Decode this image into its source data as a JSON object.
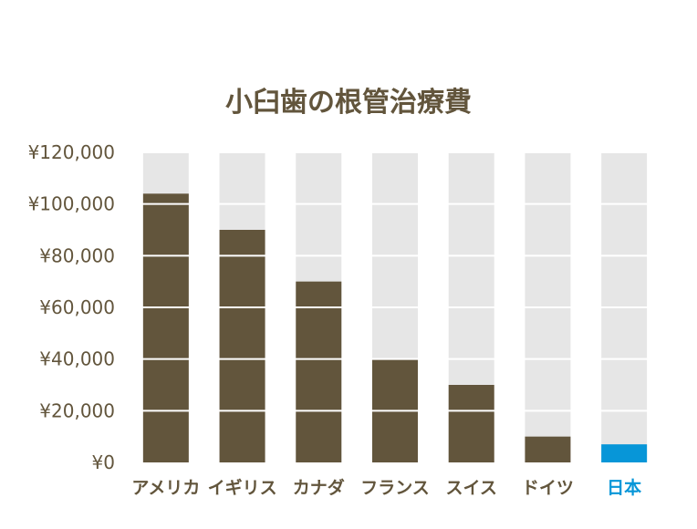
{
  "colors": {
    "bar": "#62553c",
    "highlight": "#0796d8",
    "track": "#e6e6e6",
    "text": "#62553c",
    "grid": "#ffffff"
  },
  "chart_data": {
    "type": "bar",
    "title": "小臼歯の根管治療費",
    "categories": [
      "アメリカ",
      "イギリス",
      "カナダ",
      "フランス",
      "スイス",
      "ドイツ",
      "日本"
    ],
    "values": [
      104000,
      90000,
      70000,
      40000,
      30000,
      10000,
      7000
    ],
    "highlight_category": "日本",
    "ylim": [
      0,
      120000
    ],
    "yticks": [
      0,
      20000,
      40000,
      60000,
      80000,
      100000,
      120000
    ],
    "ytick_labels": [
      "¥0",
      "¥20,000",
      "¥40,000",
      "¥60,000",
      "¥80,000",
      "¥100,000",
      "¥120,000"
    ],
    "grid": true,
    "xlabel": "",
    "ylabel": ""
  }
}
